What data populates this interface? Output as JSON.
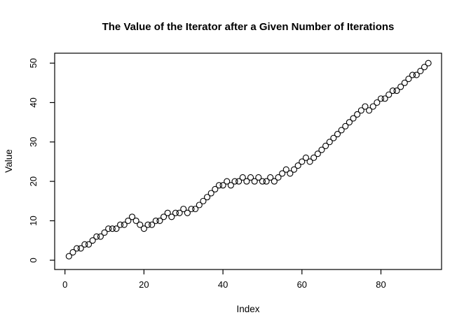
{
  "chart": {
    "title": "The Value of the Iterator after a Given Number of Iterations",
    "xlabel": "Index",
    "ylabel": "Value"
  },
  "chart_data": {
    "type": "scatter",
    "title": "The Value of the Iterator after a Given Number of Iterations",
    "xlabel": "Index",
    "ylabel": "Value",
    "marker": "open-circle",
    "marker_color": "#000000",
    "background_color": "#ffffff",
    "grid": false,
    "legend": false,
    "x_ticks": [
      0,
      20,
      40,
      60,
      80
    ],
    "y_ticks": [
      0,
      10,
      20,
      30,
      40,
      50
    ],
    "xlim": [
      -2.64,
      95.64
    ],
    "ylim": [
      -0.96,
      51.96
    ],
    "x": [
      1,
      2,
      3,
      4,
      5,
      6,
      7,
      8,
      9,
      10,
      11,
      12,
      13,
      14,
      15,
      16,
      17,
      18,
      19,
      20,
      21,
      22,
      23,
      24,
      25,
      26,
      27,
      28,
      29,
      30,
      31,
      32,
      33,
      34,
      35,
      36,
      37,
      38,
      39,
      40,
      41,
      42,
      43,
      44,
      45,
      46,
      47,
      48,
      49,
      50,
      51,
      52,
      53,
      54,
      55,
      56,
      57,
      58,
      59,
      60,
      61,
      62,
      63,
      64,
      65,
      66,
      67,
      68,
      69,
      70,
      71,
      72,
      73,
      74,
      75,
      76,
      77,
      78,
      79,
      80,
      81,
      82,
      83,
      84,
      85,
      86,
      87,
      88,
      89,
      90,
      91,
      92
    ],
    "y": [
      1,
      2,
      3,
      3,
      4,
      4,
      5,
      6,
      6,
      7,
      8,
      8,
      8,
      9,
      9,
      10,
      11,
      10,
      9,
      8,
      9,
      9,
      10,
      10,
      11,
      12,
      11,
      12,
      12,
      13,
      12,
      13,
      13,
      14,
      15,
      16,
      17,
      18,
      19,
      19,
      20,
      19,
      20,
      20,
      21,
      20,
      21,
      20,
      21,
      20,
      20,
      21,
      20,
      21,
      22,
      23,
      22,
      23,
      24,
      25,
      26,
      25,
      26,
      27,
      28,
      29,
      30,
      31,
      32,
      33,
      34,
      35,
      36,
      37,
      38,
      39,
      38,
      39,
      40,
      41,
      41,
      42,
      43,
      43,
      44,
      45,
      46,
      47,
      47,
      48,
      49,
      50
    ]
  }
}
